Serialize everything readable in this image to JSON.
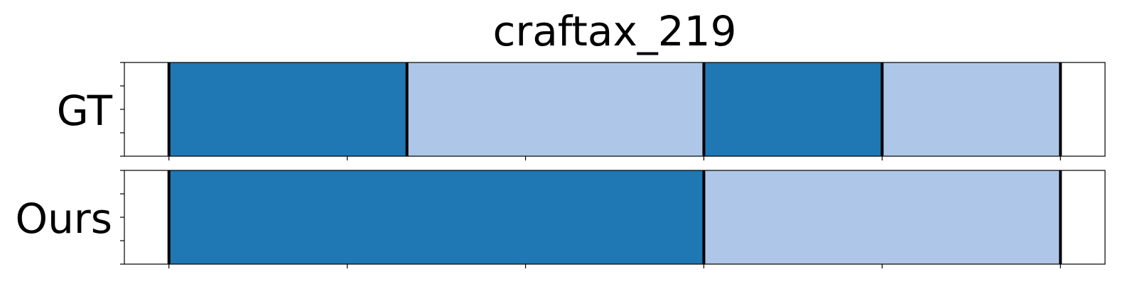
{
  "chart_data": {
    "type": "bar",
    "title": "craftax_219",
    "xlim": [
      -5,
      105
    ],
    "x_ticks": [
      0,
      20,
      40,
      60,
      80,
      100
    ],
    "y_tick_count": 5,
    "grid": false,
    "colors": {
      "dark": "#1f77b4",
      "light": "#aec7e8",
      "boundary": "#000000"
    },
    "rows": [
      {
        "label": "GT",
        "segments": [
          {
            "start": 0,
            "end": 26.7,
            "color": "dark"
          },
          {
            "start": 26.7,
            "end": 60,
            "color": "light"
          },
          {
            "start": 60,
            "end": 80,
            "color": "dark"
          },
          {
            "start": 80,
            "end": 100,
            "color": "light"
          }
        ],
        "boundaries": [
          0,
          26.7,
          60,
          80,
          100
        ]
      },
      {
        "label": "Ours",
        "segments": [
          {
            "start": 0,
            "end": 60,
            "color": "dark"
          },
          {
            "start": 60,
            "end": 100,
            "color": "light"
          }
        ],
        "boundaries": [
          0,
          60,
          100
        ]
      }
    ]
  }
}
